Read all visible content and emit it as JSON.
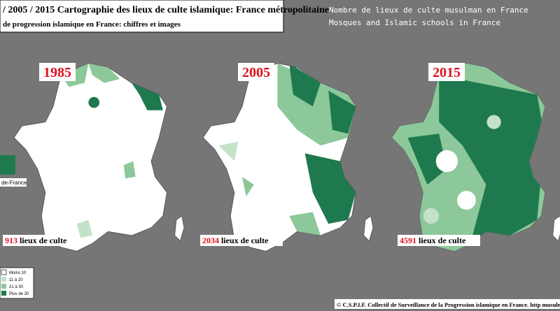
{
  "header": {
    "title": "/ 2005 / 2015  Cartographie des lieux de culte islamique: France métropolitaine.",
    "subtitle": "de progression islamique en France: chiffres et images"
  },
  "heading": {
    "line1": "Nombre de lieux de culte musulman en France",
    "line2": "Mosques and Islamic schools in France"
  },
  "maps": [
    {
      "year": "1985",
      "count": 913,
      "count_label": "lieux de culte"
    },
    {
      "year": "2005",
      "count": 2034,
      "count_label": "lieux de culte"
    },
    {
      "year": "2015",
      "count": 4591,
      "count_label": "lieux de culte"
    }
  ],
  "inset_label": "de-France",
  "legend": [
    "Moins 10",
    "11 à 20",
    "21 à 30",
    "Plus de 30"
  ],
  "footer": "© C.S.P.I.F. Collectif de Surveillance de la Progression islamique en France. http musulmania.wordp"
}
